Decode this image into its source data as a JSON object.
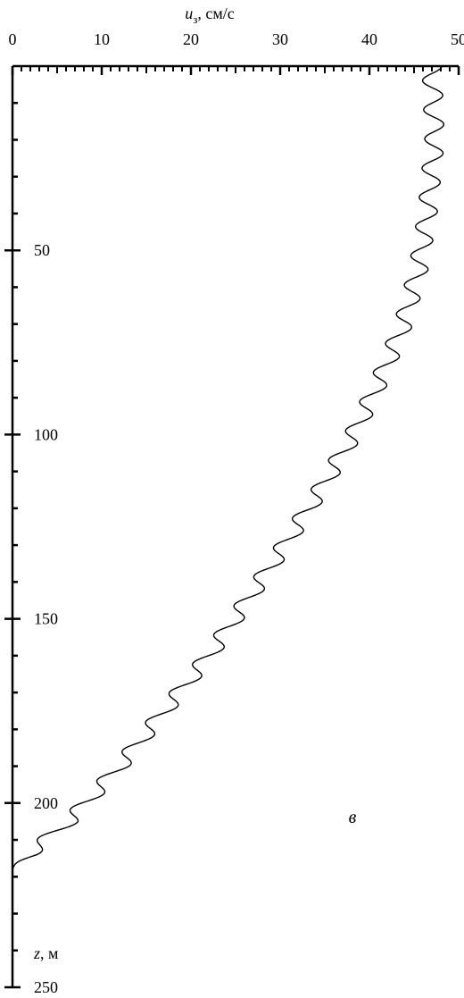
{
  "chart_data": {
    "type": "line",
    "x_axis": {
      "label_var": "u",
      "label_sub": "з",
      "label_rest": ", см/с",
      "range": [
        0,
        50
      ],
      "major_ticks": [
        0,
        10,
        20,
        30,
        40,
        50
      ],
      "major_labels": [
        "0",
        "10",
        "20",
        "30",
        "40",
        "50"
      ],
      "minor_step": 1,
      "position": "top"
    },
    "y_axis": {
      "label_var": "z",
      "label_rest": ", м",
      "range": [
        0,
        250
      ],
      "major_ticks": [
        50,
        100,
        150,
        200,
        250
      ],
      "major_labels": [
        "50",
        "100",
        "150",
        "200",
        "250"
      ],
      "minor_step": 10,
      "inverted": true
    },
    "annotation": "в",
    "grid": false,
    "series": [
      {
        "trend": [
          [
            47,
            0
          ],
          [
            47.3,
            20
          ],
          [
            46.5,
            40
          ],
          [
            45.5,
            55
          ],
          [
            43.8,
            70
          ],
          [
            41.2,
            85
          ],
          [
            38.2,
            100
          ],
          [
            34.5,
            115
          ],
          [
            30.5,
            130
          ],
          [
            26.3,
            145
          ],
          [
            22.0,
            160
          ],
          [
            17.0,
            175
          ],
          [
            12.0,
            190
          ],
          [
            6.3,
            205
          ],
          [
            2.7,
            212
          ],
          [
            0,
            218
          ]
        ],
        "wiggle_period_m": 7.9,
        "wiggle_amplitude": 1.1
      }
    ]
  }
}
